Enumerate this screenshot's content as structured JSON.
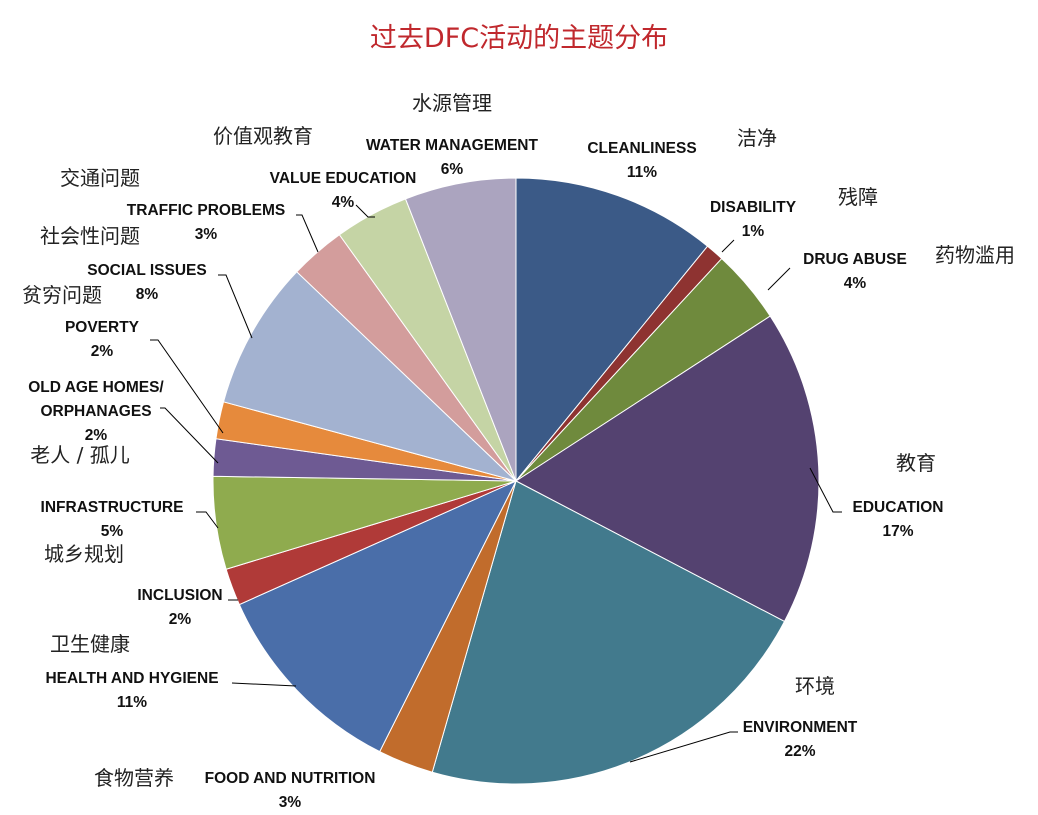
{
  "chart_data": {
    "type": "pie",
    "title": "过去DFC活动的主题分布",
    "unit": "%",
    "slices": [
      {
        "label": "CLEANLINESS",
        "cn": "洁净",
        "value": 11,
        "value_text": "11%",
        "color": "#3b5a87"
      },
      {
        "label": "DISABILITY",
        "cn": "残障",
        "value": 1,
        "value_text": "1%",
        "color": "#8e3331"
      },
      {
        "label": "DRUG ABUSE",
        "cn": "药物滥用",
        "value": 4,
        "value_text": "4%",
        "color": "#6f8a3d"
      },
      {
        "label": "EDUCATION",
        "cn": "教育",
        "value": 17,
        "value_text": "17%",
        "color": "#544270"
      },
      {
        "label": "ENVIRONMENT",
        "cn": "环境",
        "value": 22,
        "value_text": "22%",
        "color": "#427a8d"
      },
      {
        "label": "FOOD AND NUTRITION",
        "cn": "食物营养",
        "value": 3,
        "value_text": "3%",
        "color": "#c16c2c"
      },
      {
        "label": "HEALTH AND HYGIENE",
        "cn": "卫生健康",
        "value": 11,
        "value_text": "11%",
        "color": "#4a6ea9"
      },
      {
        "label": "INCLUSION",
        "cn": "",
        "value": 2,
        "value_text": "2%",
        "color": "#b03a38"
      },
      {
        "label": "INFRASTRUCTURE",
        "cn": "城乡规划",
        "value": 5,
        "value_text": "5%",
        "color": "#8fab4e"
      },
      {
        "label": "OLD AGE HOMES/\nORPHANAGES",
        "cn": "老人 / 孤儿",
        "value": 2,
        "value_text": "2%",
        "color": "#6e5a93"
      },
      {
        "label": "POVERTY",
        "cn": "贫穷问题",
        "value": 2,
        "value_text": "2%",
        "color": "#e68a3c"
      },
      {
        "label": "SOCIAL ISSUES",
        "cn": "社会性问题",
        "value": 8,
        "value_text": "8%",
        "color": "#a3b2d0"
      },
      {
        "label": "TRAFFIC PROBLEMS",
        "cn": "交通问题",
        "value": 3,
        "value_text": "3%",
        "color": "#d39d9c"
      },
      {
        "label": "VALUE EDUCATION",
        "cn": "价值观教育",
        "value": 4,
        "value_text": "4%",
        "color": "#c5d4a5"
      },
      {
        "label": "WATER MANAGEMENT",
        "cn": "水源管理",
        "value": 6,
        "value_text": "6%",
        "color": "#aba4bf"
      }
    ]
  }
}
